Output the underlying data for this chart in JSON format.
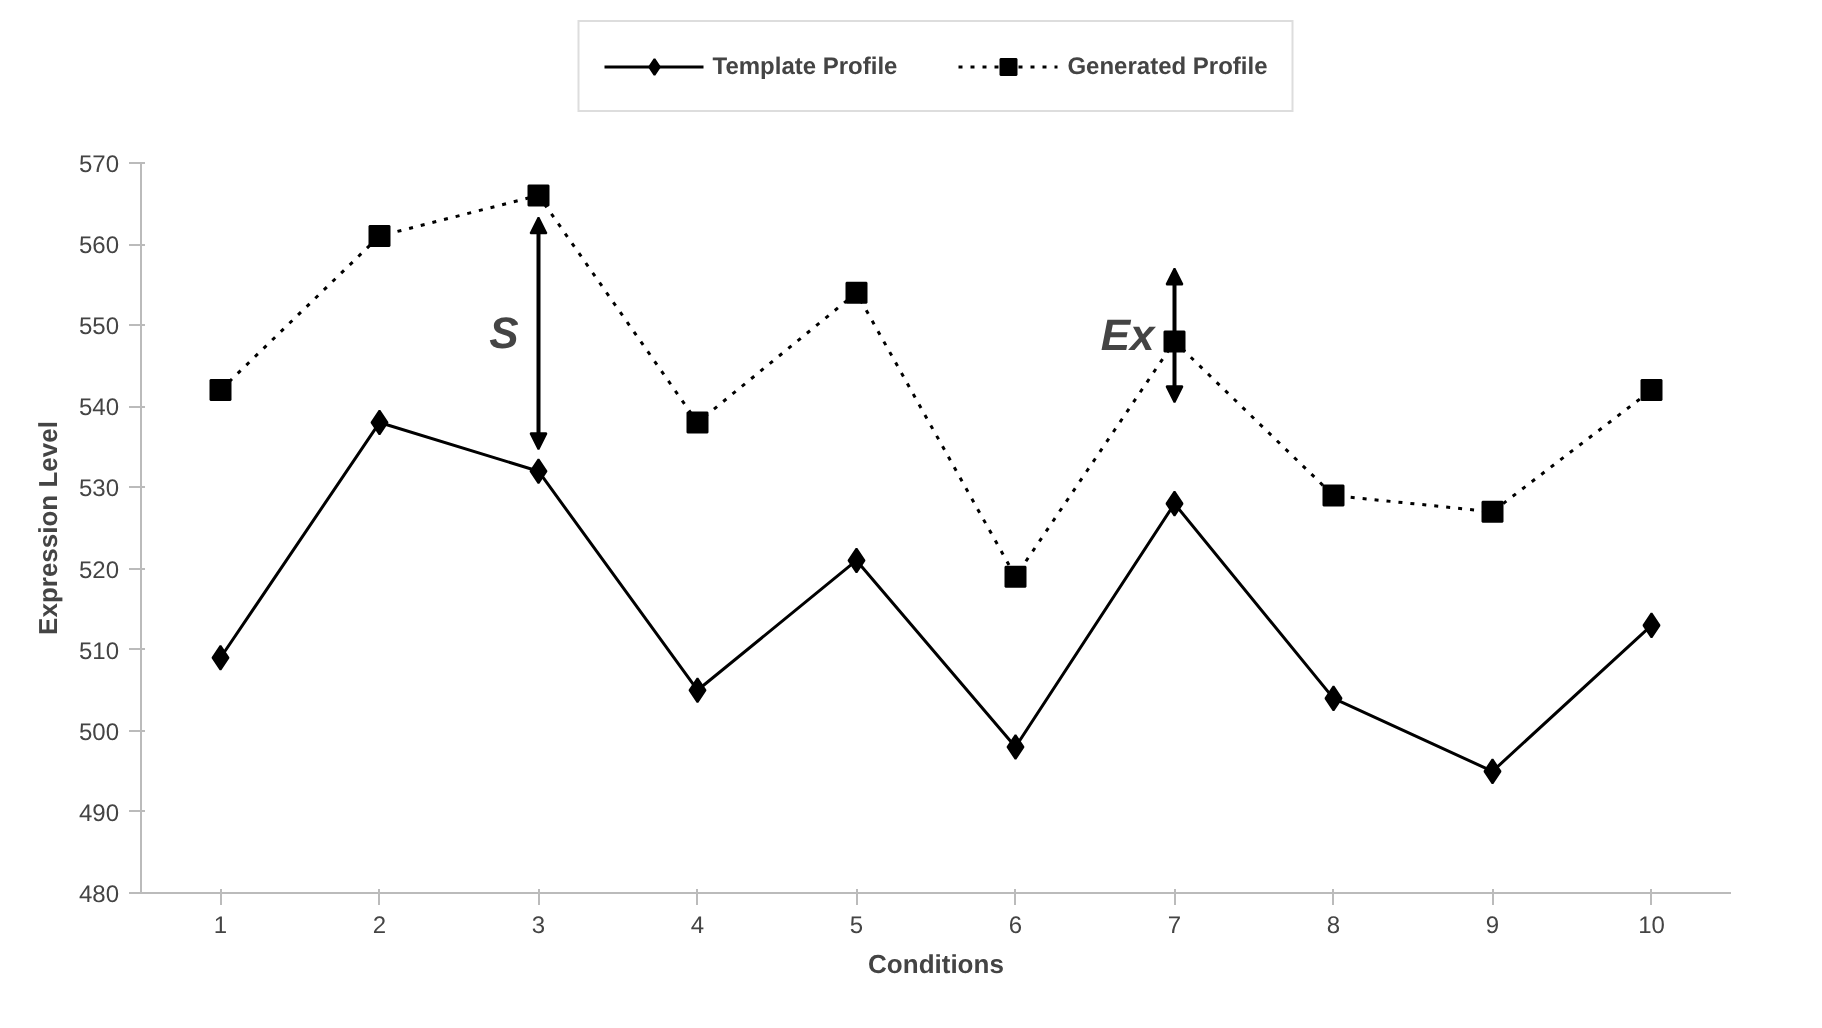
{
  "chart_data": {
    "type": "line",
    "xlabel": "Conditions",
    "ylabel": "Expression Level",
    "categories": [
      "1",
      "2",
      "3",
      "4",
      "5",
      "6",
      "7",
      "8",
      "9",
      "10"
    ],
    "series": [
      {
        "name": "Template Profile",
        "color": "#000000",
        "values": [
          509,
          538,
          532,
          505,
          521,
          498,
          528,
          504,
          495,
          513
        ],
        "marker": "diamond",
        "line_style": "solid"
      },
      {
        "name": "Generated Profile",
        "color": "#000000",
        "values": [
          542,
          561,
          566,
          538,
          554,
          519,
          548,
          529,
          527,
          542
        ],
        "marker": "square",
        "line_style": "dotted"
      }
    ],
    "annotations": [
      {
        "text": "S",
        "x": "3",
        "y": 532
      },
      {
        "text": "Ex",
        "x": "7",
        "y": 548
      }
    ],
    "ylim": [
      480,
      570
    ],
    "yticks": [
      480,
      490,
      500,
      510,
      520,
      530,
      540,
      550,
      560,
      570
    ],
    "grid": false,
    "legend": "top"
  }
}
